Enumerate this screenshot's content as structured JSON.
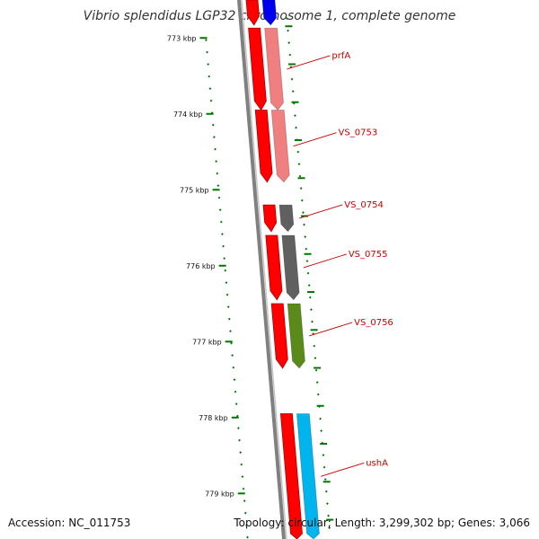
{
  "title": "Vibrio splendidus LGP32 chromosome 1, complete genome",
  "footer": {
    "accession": "Accession: NC_011753",
    "summary": "Topology: circular; Length: 3,299,302 bp; Genes: 3,066"
  },
  "scale": {
    "start_kbp": 772.5,
    "end_kbp": 779.6,
    "ticks": [
      "773 kbp",
      "774 kbp",
      "775 kbp",
      "776 kbp",
      "777 kbp",
      "778 kbp",
      "779 kbp"
    ]
  },
  "colors": {
    "cds": "#ff0000",
    "backbone": "#808080",
    "tick": "#007700",
    "label": "#cc0000",
    "gene_blue": "#0000ee",
    "gene_pink": "#f08080",
    "gene_gray": "#606060",
    "gene_green": "#5a8a1a",
    "gene_cyan": "#00b4ee"
  },
  "genes": [
    {
      "label": "",
      "start_kbp": 772.5,
      "end_kbp": 772.83,
      "color": "gene_blue"
    },
    {
      "label": "prfA",
      "start_kbp": 772.87,
      "end_kbp": 773.95,
      "color": "gene_pink"
    },
    {
      "label": "VS_0753",
      "start_kbp": 773.95,
      "end_kbp": 774.9,
      "color": "gene_pink"
    },
    {
      "label": "VS_0754",
      "start_kbp": 775.2,
      "end_kbp": 775.55,
      "color": "gene_gray"
    },
    {
      "label": "VS_0755",
      "start_kbp": 775.6,
      "end_kbp": 776.45,
      "color": "gene_gray"
    },
    {
      "label": "VS_0756",
      "start_kbp": 776.5,
      "end_kbp": 777.35,
      "color": "gene_green"
    },
    {
      "label": "ushA",
      "start_kbp": 777.95,
      "end_kbp": 779.6,
      "color": "gene_cyan"
    }
  ]
}
